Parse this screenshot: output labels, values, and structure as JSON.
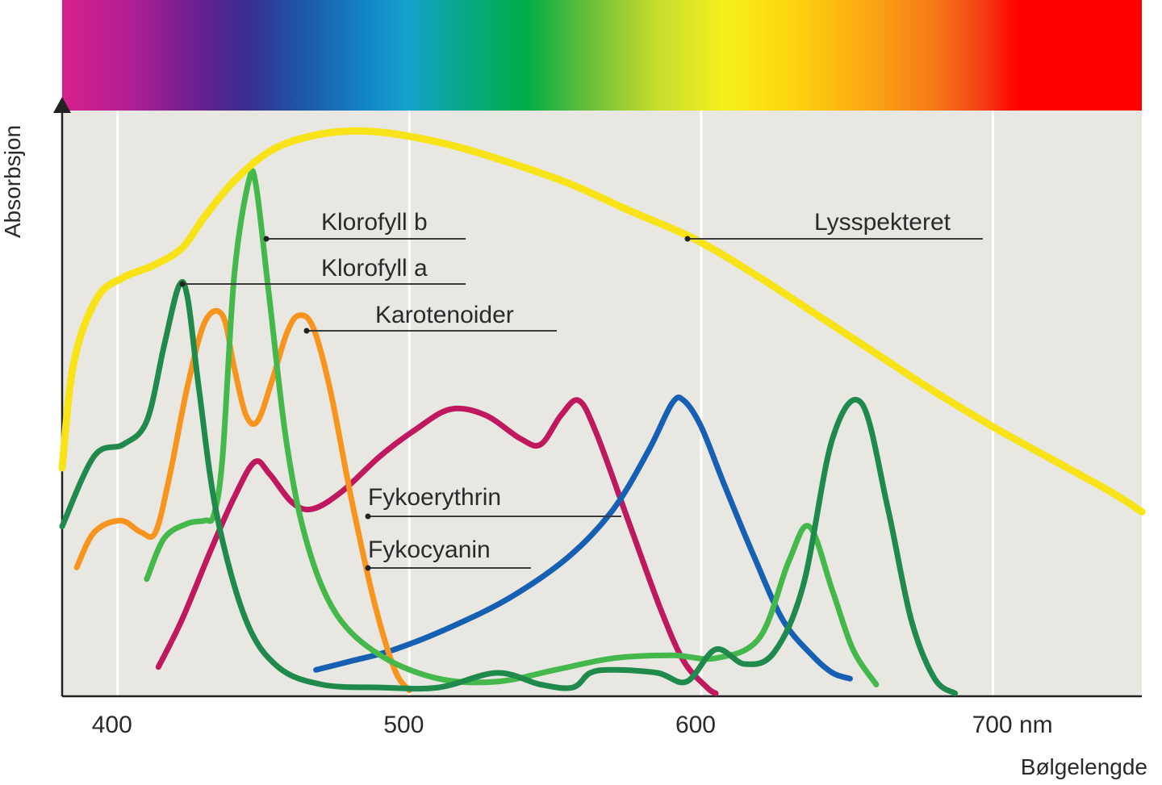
{
  "chart_data": {
    "type": "line",
    "xlabel": "Bølgelengde",
    "ylabel": "Absorbsjon",
    "x_unit": "nm",
    "xlim": [
      381,
      751
    ],
    "ylim": [
      0,
      100
    ],
    "x_ticks": [
      {
        "value": 400,
        "label": "400"
      },
      {
        "value": 500,
        "label": "500"
      },
      {
        "value": 600,
        "label": "600"
      },
      {
        "value": 700,
        "label": "700 nm"
      }
    ],
    "grid": "vertical",
    "spectrum_bar": true,
    "series": [
      {
        "name": "Lysspekteret",
        "color": "#f7e317",
        "points": [
          [
            381,
            39
          ],
          [
            385,
            57
          ],
          [
            393,
            68
          ],
          [
            402,
            71.5
          ],
          [
            412,
            73.5
          ],
          [
            422,
            76.5
          ],
          [
            430,
            82
          ],
          [
            440,
            88
          ],
          [
            452,
            93
          ],
          [
            465,
            95.5
          ],
          [
            480,
            96.5
          ],
          [
            495,
            96
          ],
          [
            515,
            94
          ],
          [
            535,
            91
          ],
          [
            555,
            87.5
          ],
          [
            575,
            83
          ],
          [
            598,
            78
          ],
          [
            620,
            71.5
          ],
          [
            640,
            65
          ],
          [
            660,
            58.5
          ],
          [
            680,
            52
          ],
          [
            700,
            46
          ],
          [
            720,
            40.5
          ],
          [
            740,
            35
          ],
          [
            751,
            31.5
          ]
        ]
      },
      {
        "name": "Klorofyll b",
        "color": "#44b84a",
        "points": [
          [
            410,
            20
          ],
          [
            416,
            27
          ],
          [
            424,
            29.5
          ],
          [
            430,
            30
          ],
          [
            433,
            31
          ],
          [
            436,
            41
          ],
          [
            440,
            72
          ],
          [
            445,
            88
          ],
          [
            447.5,
            87
          ],
          [
            452,
            68
          ],
          [
            458,
            43
          ],
          [
            465,
            26
          ],
          [
            475,
            14
          ],
          [
            490,
            7
          ],
          [
            510,
            3
          ],
          [
            530,
            2.5
          ],
          [
            550,
            4.5
          ],
          [
            570,
            6.5
          ],
          [
            590,
            7
          ],
          [
            605,
            6.5
          ],
          [
            620,
            10
          ],
          [
            630,
            23
          ],
          [
            637,
            29
          ],
          [
            645,
            18
          ],
          [
            652,
            8
          ],
          [
            660,
            2
          ]
        ]
      },
      {
        "name": "Klorofyll a",
        "color": "#1f8a4c",
        "points": [
          [
            381,
            29
          ],
          [
            392,
            41
          ],
          [
            402,
            43
          ],
          [
            410,
            47
          ],
          [
            416,
            60
          ],
          [
            421,
            70
          ],
          [
            424,
            68
          ],
          [
            428,
            52
          ],
          [
            434,
            31
          ],
          [
            444,
            13
          ],
          [
            455,
            5
          ],
          [
            470,
            2
          ],
          [
            490,
            1.5
          ],
          [
            510,
            1.5
          ],
          [
            530,
            4
          ],
          [
            545,
            2
          ],
          [
            556,
            1.5
          ],
          [
            562,
            4
          ],
          [
            570,
            4.5
          ],
          [
            585,
            4
          ],
          [
            595,
            2.5
          ],
          [
            605,
            8
          ],
          [
            615,
            5.5
          ],
          [
            625,
            7.5
          ],
          [
            635,
            19
          ],
          [
            645,
            44
          ],
          [
            655,
            50
          ],
          [
            664,
            32
          ],
          [
            672,
            13
          ],
          [
            680,
            3
          ],
          [
            687,
            0.5
          ]
        ]
      },
      {
        "name": "Karotenoider",
        "color": "#f7941d",
        "points": [
          [
            386,
            22
          ],
          [
            392,
            28
          ],
          [
            401,
            30
          ],
          [
            408,
            28
          ],
          [
            413,
            28
          ],
          [
            418,
            38
          ],
          [
            424,
            53
          ],
          [
            430,
            64
          ],
          [
            436,
            65
          ],
          [
            440,
            56
          ],
          [
            444,
            48
          ],
          [
            448,
            47
          ],
          [
            453,
            54
          ],
          [
            458,
            62
          ],
          [
            462,
            65
          ],
          [
            467,
            63
          ],
          [
            473,
            52
          ],
          [
            480,
            34
          ],
          [
            488,
            16
          ],
          [
            495,
            4.5
          ],
          [
            500,
            1
          ]
        ]
      },
      {
        "name": "Fykoerythrin",
        "color": "#c0185e",
        "points": [
          [
            414,
            5
          ],
          [
            422,
            13
          ],
          [
            432,
            25
          ],
          [
            440,
            34
          ],
          [
            447,
            40
          ],
          [
            452,
            38
          ],
          [
            460,
            33
          ],
          [
            467,
            32
          ],
          [
            477,
            35
          ],
          [
            490,
            41
          ],
          [
            502,
            45.5
          ],
          [
            514,
            49
          ],
          [
            526,
            48
          ],
          [
            538,
            44
          ],
          [
            545,
            43
          ],
          [
            552,
            48
          ],
          [
            558,
            50.5
          ],
          [
            564,
            45
          ],
          [
            575,
            30
          ],
          [
            586,
            15
          ],
          [
            594,
            6
          ],
          [
            602,
            1.5
          ],
          [
            605,
            0.5
          ]
        ]
      },
      {
        "name": "Fykocyanin",
        "color": "#1660b3",
        "points": [
          [
            468,
            4.5
          ],
          [
            480,
            6
          ],
          [
            495,
            8
          ],
          [
            515,
            12
          ],
          [
            535,
            17
          ],
          [
            555,
            24
          ],
          [
            570,
            32
          ],
          [
            582,
            42
          ],
          [
            590,
            50
          ],
          [
            594,
            50.5
          ],
          [
            600,
            46
          ],
          [
            608,
            36
          ],
          [
            618,
            24
          ],
          [
            628,
            13
          ],
          [
            638,
            7
          ],
          [
            645,
            4
          ],
          [
            651,
            3
          ]
        ]
      }
    ]
  }
}
